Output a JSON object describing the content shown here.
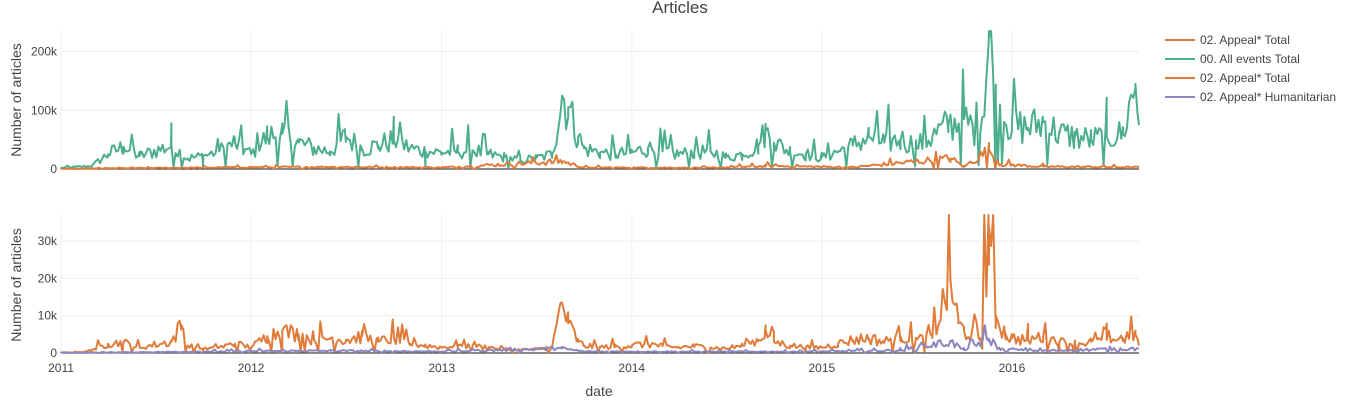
{
  "chart_data": {
    "type": "line",
    "title": "Articles",
    "xlabel": "date",
    "x_tick_labels": [
      "2011",
      "2012",
      "2013",
      "2014",
      "2015",
      "2016"
    ],
    "x_range": [
      "2011-01-01",
      "2016-09-01"
    ],
    "grid": true,
    "legend_placement": "top-right",
    "legend": [
      {
        "label": "02. Appeal*  Total",
        "color": "#e07b39"
      },
      {
        "label": "00. All events Total",
        "color": "#4cae8e"
      },
      {
        "label": "02. Appeal*  Total",
        "color": "#e07b39"
      },
      {
        "label": "02. Appeal* Humanitarian",
        "color": "#8a86bf"
      }
    ],
    "panels": [
      {
        "ylabel": "Number of articles",
        "y_tick_labels": [
          "0",
          "100k",
          "200k"
        ],
        "y_ticks": [
          0,
          100000,
          200000
        ],
        "ylim": [
          0,
          235000
        ],
        "series": [
          {
            "legend_label": "00. All events Total",
            "color": "#4cae8e",
            "points": [
              [
                "2011-01-01",
                2000
              ],
              [
                "2011-03-01",
                5000
              ],
              [
                "2011-04-01",
                25000
              ],
              [
                "2011-05-01",
                38000
              ],
              [
                "2011-06-01",
                22000
              ],
              [
                "2011-08-01",
                40000
              ],
              [
                "2011-09-01",
                18000
              ],
              [
                "2011-10-01",
                22000
              ],
              [
                "2011-11-01",
                30000
              ],
              [
                "2011-12-01",
                45000
              ],
              [
                "2012-01-01",
                25000
              ],
              [
                "2012-02-01",
                55000
              ],
              [
                "2012-03-01",
                60000
              ],
              [
                "2012-04-01",
                45000
              ],
              [
                "2012-05-01",
                35000
              ],
              [
                "2012-06-01",
                30000
              ],
              [
                "2012-07-01",
                55000
              ],
              [
                "2012-08-01",
                35000
              ],
              [
                "2012-09-01",
                40000
              ],
              [
                "2012-10-01",
                50000
              ],
              [
                "2012-11-01",
                35000
              ],
              [
                "2012-12-01",
                30000
              ],
              [
                "2013-01-01",
                28000
              ],
              [
                "2013-02-01",
                30000
              ],
              [
                "2013-03-01",
                32000
              ],
              [
                "2013-04-01",
                25000
              ],
              [
                "2013-05-01",
                20000
              ],
              [
                "2013-06-01",
                15000
              ],
              [
                "2013-07-01",
                18000
              ],
              [
                "2013-08-01",
                25000
              ],
              [
                "2013-08-20",
                125000
              ],
              [
                "2013-09-01",
                105000
              ],
              [
                "2013-09-20",
                55000
              ],
              [
                "2013-10-01",
                35000
              ],
              [
                "2013-11-01",
                28000
              ],
              [
                "2013-12-01",
                25000
              ],
              [
                "2014-01-01",
                28000
              ],
              [
                "2014-02-01",
                35000
              ],
              [
                "2014-03-01",
                30000
              ],
              [
                "2014-04-01",
                25000
              ],
              [
                "2014-05-01",
                28000
              ],
              [
                "2014-06-01",
                30000
              ],
              [
                "2014-07-01",
                20000
              ],
              [
                "2014-08-01",
                25000
              ],
              [
                "2014-09-01",
                40000
              ],
              [
                "2014-09-15",
                65000
              ],
              [
                "2014-10-01",
                45000
              ],
              [
                "2014-11-01",
                30000
              ],
              [
                "2014-12-01",
                25000
              ],
              [
                "2015-01-01",
                20000
              ],
              [
                "2015-02-01",
                30000
              ],
              [
                "2015-03-01",
                40000
              ],
              [
                "2015-04-01",
                55000
              ],
              [
                "2015-05-01",
                45000
              ],
              [
                "2015-06-01",
                50000
              ],
              [
                "2015-07-01",
                40000
              ],
              [
                "2015-08-01",
                55000
              ],
              [
                "2015-09-01",
                75000
              ],
              [
                "2015-10-01",
                85000
              ],
              [
                "2015-11-01",
                60000
              ],
              [
                "2015-11-18",
                225000
              ],
              [
                "2015-12-01",
                110000
              ],
              [
                "2016-01-01",
                75000
              ],
              [
                "2016-02-01",
                70000
              ],
              [
                "2016-03-01",
                80000
              ],
              [
                "2016-04-01",
                60000
              ],
              [
                "2016-05-01",
                55000
              ],
              [
                "2016-06-01",
                50000
              ],
              [
                "2016-07-01",
                55000
              ],
              [
                "2016-08-01",
                60000
              ],
              [
                "2016-08-25",
                145000
              ],
              [
                "2016-09-01",
                75000
              ]
            ]
          },
          {
            "legend_label": "02. Appeal*  Total",
            "color": "#e07b39",
            "points": [
              [
                "2011-01-01",
                300
              ],
              [
                "2011-06-01",
                1500
              ],
              [
                "2012-01-01",
                3000
              ],
              [
                "2012-06-01",
                3500
              ],
              [
                "2013-01-01",
                2500
              ],
              [
                "2013-08-20",
                13000
              ],
              [
                "2013-10-01",
                2500
              ],
              [
                "2014-06-01",
                2000
              ],
              [
                "2014-09-15",
                5000
              ],
              [
                "2015-03-01",
                3000
              ],
              [
                "2015-09-05",
                18000
              ],
              [
                "2015-10-01",
                4000
              ],
              [
                "2015-11-18",
                32000
              ],
              [
                "2015-12-10",
                8000
              ],
              [
                "2016-03-01",
                4000
              ],
              [
                "2016-09-01",
                3000
              ]
            ]
          }
        ]
      },
      {
        "ylabel": "Number of articles",
        "y_tick_labels": [
          "0",
          "10k",
          "20k",
          "30k"
        ],
        "y_ticks": [
          0,
          10000,
          20000,
          30000
        ],
        "ylim": [
          0,
          37000
        ],
        "series": [
          {
            "legend_label": "02. Appeal*  Total",
            "color": "#e07b39",
            "points": [
              [
                "2011-01-01",
                100
              ],
              [
                "2011-02-15",
                300
              ],
              [
                "2011-03-01",
                800
              ],
              [
                "2011-04-01",
                2500
              ],
              [
                "2011-05-01",
                2800
              ],
              [
                "2011-06-01",
                1500
              ],
              [
                "2011-08-01",
                3000
              ],
              [
                "2011-08-20",
                7500
              ],
              [
                "2011-09-01",
                2000
              ],
              [
                "2011-10-01",
                1000
              ],
              [
                "2011-11-01",
                1500
              ],
              [
                "2011-12-01",
                2500
              ],
              [
                "2012-01-01",
                1500
              ],
              [
                "2012-02-01",
                4500
              ],
              [
                "2012-03-01",
                6000
              ],
              [
                "2012-04-01",
                5000
              ],
              [
                "2012-05-01",
                3500
              ],
              [
                "2012-06-01",
                4000
              ],
              [
                "2012-07-01",
                3500
              ],
              [
                "2012-08-01",
                4500
              ],
              [
                "2012-09-01",
                3000
              ],
              [
                "2012-10-01",
                4000
              ],
              [
                "2012-11-01",
                2500
              ],
              [
                "2012-12-01",
                2000
              ],
              [
                "2013-01-01",
                1500
              ],
              [
                "2013-02-01",
                2000
              ],
              [
                "2013-03-01",
                1800
              ],
              [
                "2013-04-01",
                1500
              ],
              [
                "2013-05-01",
                1000
              ],
              [
                "2013-06-01",
                800
              ],
              [
                "2013-07-01",
                1000
              ],
              [
                "2013-08-01",
                1500
              ],
              [
                "2013-08-20",
                13500
              ],
              [
                "2013-09-01",
                8000
              ],
              [
                "2013-09-20",
                3000
              ],
              [
                "2013-10-01",
                2000
              ],
              [
                "2013-11-01",
                1500
              ],
              [
                "2013-12-01",
                1800
              ],
              [
                "2014-01-01",
                2000
              ],
              [
                "2014-02-01",
                2500
              ],
              [
                "2014-03-01",
                1800
              ],
              [
                "2014-04-01",
                1500
              ],
              [
                "2014-05-01",
                1800
              ],
              [
                "2014-06-01",
                1500
              ],
              [
                "2014-07-01",
                1200
              ],
              [
                "2014-08-01",
                2000
              ],
              [
                "2014-09-01",
                3500
              ],
              [
                "2014-09-15",
                6000
              ],
              [
                "2014-10-01",
                3000
              ],
              [
                "2014-11-01",
                2000
              ],
              [
                "2014-12-01",
                1500
              ],
              [
                "2015-01-01",
                1500
              ],
              [
                "2015-02-01",
                2500
              ],
              [
                "2015-03-01",
                3500
              ],
              [
                "2015-04-01",
                4000
              ],
              [
                "2015-05-01",
                3000
              ],
              [
                "2015-06-01",
                4500
              ],
              [
                "2015-07-01",
                3500
              ],
              [
                "2015-08-01",
                4000
              ],
              [
                "2015-09-05",
                19500
              ],
              [
                "2015-09-20",
                8000
              ],
              [
                "2015-10-01",
                6000
              ],
              [
                "2015-11-01",
                4000
              ],
              [
                "2015-11-18",
                33500
              ],
              [
                "2015-12-01",
                10000
              ],
              [
                "2015-12-20",
                5000
              ],
              [
                "2016-01-01",
                4000
              ],
              [
                "2016-02-01",
                3500
              ],
              [
                "2016-03-01",
                4500
              ],
              [
                "2016-04-01",
                3000
              ],
              [
                "2016-05-01",
                2500
              ],
              [
                "2016-06-01",
                3000
              ],
              [
                "2016-07-01",
                3500
              ],
              [
                "2016-08-01",
                4000
              ],
              [
                "2016-08-25",
                5000
              ],
              [
                "2016-09-01",
                2000
              ]
            ]
          },
          {
            "legend_label": "02. Appeal* Humanitarian",
            "color": "#8a86bf",
            "points": [
              [
                "2011-01-01",
                50
              ],
              [
                "2011-06-01",
                200
              ],
              [
                "2012-01-01",
                500
              ],
              [
                "2012-06-01",
                600
              ],
              [
                "2013-01-01",
                400
              ],
              [
                "2013-08-20",
                1200
              ],
              [
                "2013-10-01",
                400
              ],
              [
                "2014-06-01",
                350
              ],
              [
                "2015-01-01",
                400
              ],
              [
                "2015-06-01",
                700
              ],
              [
                "2015-09-05",
                3000
              ],
              [
                "2015-10-01",
                800
              ],
              [
                "2015-11-18",
                3800
              ],
              [
                "2015-12-10",
                900
              ],
              [
                "2016-03-01",
                600
              ],
              [
                "2016-09-01",
                1200
              ]
            ]
          }
        ]
      }
    ]
  }
}
